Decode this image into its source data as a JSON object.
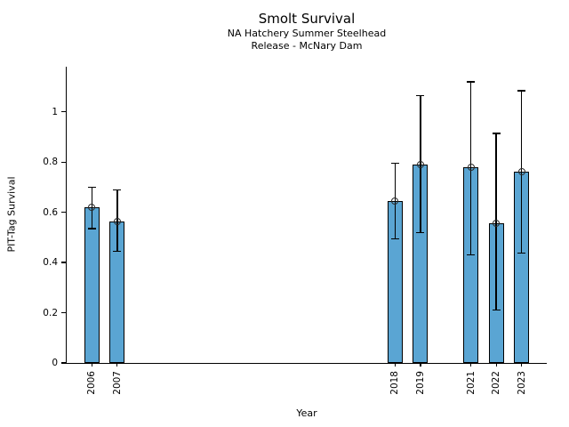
{
  "chart_data": {
    "type": "bar",
    "title": "Smolt Survival",
    "subtitle1": "NA Hatchery Summer Steelhead",
    "subtitle2": "Release - McNary Dam",
    "xlabel": "Year",
    "ylabel": "PIT-Tag Survival",
    "categories": [
      2006,
      2007,
      2018,
      2019,
      2021,
      2022,
      2023
    ],
    "values": [
      0.62,
      0.565,
      0.645,
      0.79,
      0.78,
      0.558,
      0.762
    ],
    "error_low": [
      0.535,
      0.445,
      0.495,
      0.52,
      0.43,
      0.21,
      0.437
    ],
    "error_high": [
      0.7,
      0.69,
      0.795,
      1.065,
      1.12,
      0.915,
      1.085
    ],
    "xlim": [
      2005,
      2024
    ],
    "ylim": [
      0,
      1.18
    ],
    "yticks": [
      0,
      0.2,
      0.4,
      0.6,
      0.8,
      1
    ],
    "ytick_labels": [
      "0",
      "0.2",
      "0.4",
      "0.6",
      "0.8",
      "1"
    ],
    "bar_width_years": 0.6,
    "bar_color": "#5AA5D3",
    "bar_edge_color": "#000000",
    "error_color": "#000000",
    "marker_style": "open-circle",
    "grid": false,
    "legend": null
  }
}
